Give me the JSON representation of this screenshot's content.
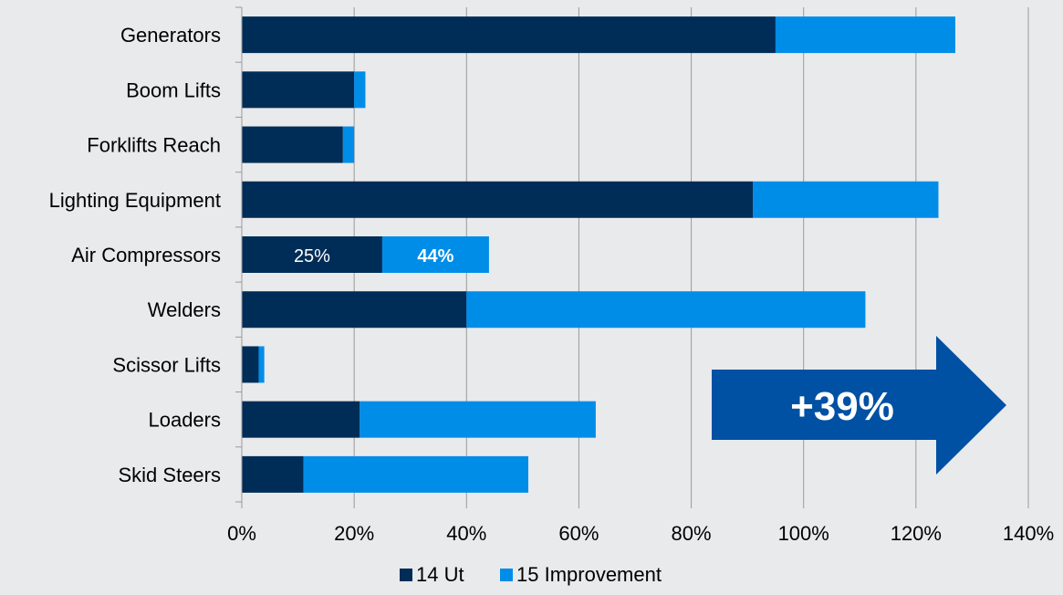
{
  "chart_data": {
    "type": "bar",
    "orientation": "horizontal",
    "stacked": true,
    "categories": [
      "Generators",
      "Boom Lifts",
      "Forklifts Reach",
      "Lighting Equipment",
      "Air Compressors",
      "Welders",
      "Scissor Lifts",
      "Loaders",
      "Skid Steers"
    ],
    "series": [
      {
        "name": "14 Ut",
        "color": "#002d57",
        "values": [
          95,
          20,
          18,
          91,
          25,
          40,
          3,
          21,
          11
        ]
      },
      {
        "name": "15 Improvement",
        "color": "#008de8",
        "values": [
          32,
          2,
          2,
          33,
          19,
          71,
          1,
          42,
          40
        ]
      }
    ],
    "x_ticks": [
      "0%",
      "20%",
      "40%",
      "60%",
      "80%",
      "100%",
      "120%",
      "140%"
    ],
    "xlim": [
      0,
      140
    ],
    "grid": "vertical",
    "legend_position": "bottom",
    "data_labels": [
      {
        "category": "Air Compressors",
        "series": "14 Ut",
        "text": "25%",
        "bold": false
      },
      {
        "category": "Air Compressors",
        "series": "15 Improvement",
        "text": "44%",
        "bold": true
      }
    ],
    "callout": {
      "text": "+39%",
      "color": "#0050a4"
    }
  }
}
